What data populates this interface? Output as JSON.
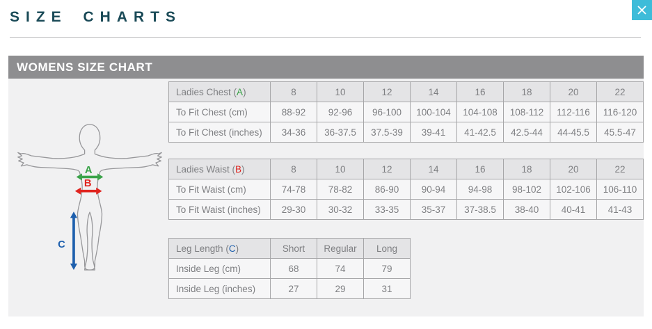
{
  "header": {
    "title": "SIZE CHARTS"
  },
  "panel": {
    "heading": "WOMENS SIZE CHART"
  },
  "strings": {
    "paren_open": "(",
    "paren_close": ")"
  },
  "figure": {
    "markers": [
      {
        "id": "chest",
        "letter": "A",
        "color": "#3aa349"
      },
      {
        "id": "waist",
        "letter": "B",
        "color": "#e0241f"
      },
      {
        "id": "leg",
        "letter": "C",
        "color": "#1d5fad"
      }
    ]
  },
  "tables": [
    {
      "header_label": "Ladies Chest",
      "marker": "A",
      "marker_color": "#3aa349",
      "columns": [
        "8",
        "10",
        "12",
        "14",
        "16",
        "18",
        "20",
        "22"
      ],
      "rows": [
        {
          "label": "To Fit Chest (cm)",
          "values": [
            "88-92",
            "92-96",
            "96-100",
            "100-104",
            "104-108",
            "108-112",
            "112-116",
            "116-120"
          ]
        },
        {
          "label": "To Fit Chest (inches)",
          "values": [
            "34-36",
            "36-37.5",
            "37.5-39",
            "39-41",
            "41-42.5",
            "42.5-44",
            "44-45.5",
            "45.5-47"
          ]
        }
      ]
    },
    {
      "header_label": "Ladies Waist",
      "marker": "B",
      "marker_color": "#e0241f",
      "columns": [
        "8",
        "10",
        "12",
        "14",
        "16",
        "18",
        "20",
        "22"
      ],
      "rows": [
        {
          "label": "To Fit Waist (cm)",
          "values": [
            "74-78",
            "78-82",
            "86-90",
            "90-94",
            "94-98",
            "98-102",
            "102-106",
            "106-110"
          ]
        },
        {
          "label": "To Fit Waist (inches)",
          "values": [
            "29-30",
            "30-32",
            "33-35",
            "35-37",
            "37-38.5",
            "38-40",
            "40-41",
            "41-43"
          ]
        }
      ]
    },
    {
      "header_label": "Leg Length",
      "marker": "C",
      "marker_color": "#1d5fad",
      "columns": [
        "Short",
        "Regular",
        "Long"
      ],
      "rows": [
        {
          "label": "Inside Leg (cm)",
          "values": [
            "68",
            "74",
            "79"
          ]
        },
        {
          "label": "Inside Leg (inches)",
          "values": [
            "27",
            "29",
            "31"
          ]
        }
      ]
    }
  ]
}
